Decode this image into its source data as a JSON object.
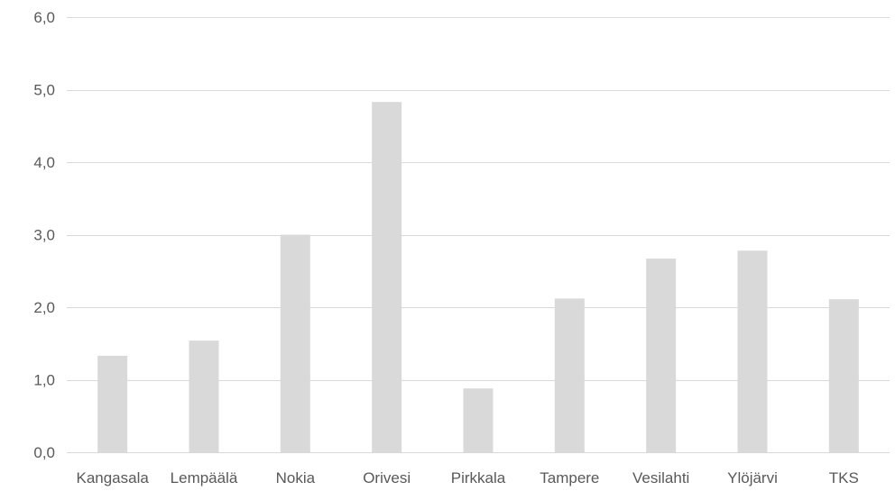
{
  "chart_data": {
    "type": "bar",
    "title": "",
    "xlabel": "",
    "ylabel": "",
    "categories": [
      "Kangasala",
      "Lempäälä",
      "Nokia",
      "Orivesi",
      "Pirkkala",
      "Tampere",
      "Vesilahti",
      "Ylöjärvi",
      "TKS"
    ],
    "values": [
      1.33,
      1.54,
      3.0,
      4.83,
      0.88,
      2.12,
      2.67,
      2.78,
      2.11
    ],
    "ylim": [
      0,
      6
    ],
    "yticks": [
      0,
      1,
      2,
      3,
      4,
      5,
      6
    ],
    "ytick_labels": [
      "0,0",
      "1,0",
      "2,0",
      "3,0",
      "4,0",
      "5,0",
      "6,0"
    ],
    "grid": true,
    "legend": "none",
    "bar_color": "#d9d9d9",
    "grid_color": "#d9d9d9",
    "text_color": "#595959"
  }
}
